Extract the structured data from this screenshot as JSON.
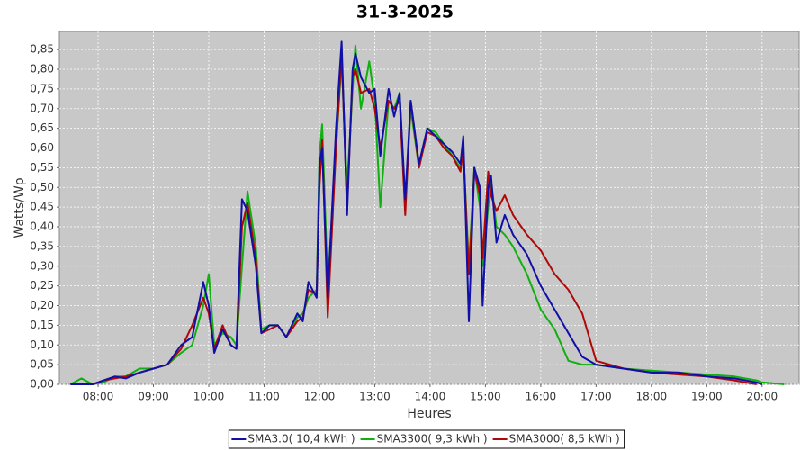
{
  "chart_data": {
    "type": "line",
    "title": "31-3-2025",
    "x_label": "Heures",
    "y_label": "Watts/Wp",
    "x": [
      7.5,
      7.7,
      7.9,
      8.1,
      8.3,
      8.5,
      8.75,
      9.0,
      9.25,
      9.5,
      9.7,
      9.9,
      10.0,
      10.1,
      10.25,
      10.4,
      10.5,
      10.6,
      10.7,
      10.85,
      10.95,
      11.1,
      11.25,
      11.4,
      11.6,
      11.7,
      11.8,
      11.95,
      12.0,
      12.05,
      12.15,
      12.3,
      12.4,
      12.5,
      12.6,
      12.65,
      12.75,
      12.9,
      13.0,
      13.1,
      13.25,
      13.35,
      13.45,
      13.55,
      13.65,
      13.8,
      13.95,
      14.1,
      14.25,
      14.4,
      14.55,
      14.6,
      14.7,
      14.8,
      14.9,
      14.95,
      15.05,
      15.1,
      15.2,
      15.35,
      15.5,
      15.75,
      16.0,
      16.25,
      16.5,
      16.75,
      17.0,
      17.5,
      18.0,
      18.5,
      19.0,
      19.5,
      19.9,
      20.0,
      20.4
    ],
    "series": [
      {
        "name": "SMA3.0( 10,4 kWh )",
        "color": "#1010a8",
        "values": [
          0,
          0,
          0,
          0.01,
          0.02,
          0.015,
          0.03,
          0.04,
          0.05,
          0.1,
          0.12,
          0.26,
          0.2,
          0.08,
          0.14,
          0.1,
          0.09,
          0.47,
          0.44,
          0.3,
          0.13,
          0.15,
          0.15,
          0.12,
          0.18,
          0.16,
          0.26,
          0.22,
          0.56,
          0.6,
          0.22,
          0.65,
          0.87,
          0.43,
          0.8,
          0.84,
          0.78,
          0.74,
          0.75,
          0.58,
          0.75,
          0.68,
          0.74,
          0.47,
          0.72,
          0.56,
          0.65,
          0.63,
          0.61,
          0.59,
          0.56,
          0.63,
          0.16,
          0.55,
          0.5,
          0.2,
          0.5,
          0.53,
          0.36,
          0.43,
          0.38,
          0.33,
          0.25,
          0.19,
          0.13,
          0.07,
          0.05,
          0.04,
          0.03,
          0.03,
          0.02,
          0.015,
          0.005,
          0,
          null
        ]
      },
      {
        "name": "SMA3300( 9,3 kWh )",
        "color": "#10b010",
        "values": [
          0,
          0.015,
          0,
          0.005,
          0.02,
          0.02,
          0.04,
          0.04,
          0.05,
          0.08,
          0.1,
          0.2,
          0.28,
          0.1,
          0.13,
          0.12,
          0.1,
          0.3,
          0.49,
          0.35,
          0.14,
          0.15,
          0.15,
          0.12,
          0.17,
          0.18,
          0.22,
          0.24,
          0.58,
          0.66,
          0.25,
          0.6,
          0.82,
          0.5,
          0.75,
          0.86,
          0.7,
          0.82,
          0.72,
          0.45,
          0.72,
          0.7,
          0.74,
          0.45,
          0.7,
          0.55,
          0.65,
          0.64,
          0.61,
          0.58,
          0.55,
          0.6,
          0.3,
          0.55,
          0.45,
          0.3,
          0.45,
          0.52,
          0.4,
          0.38,
          0.35,
          0.28,
          0.19,
          0.14,
          0.06,
          0.05,
          0.05,
          0.04,
          0.035,
          0.03,
          0.025,
          0.02,
          0.01,
          0.005,
          0
        ]
      },
      {
        "name": "SMA3000( 8,5 kWh )",
        "color": "#b00808",
        "values": [
          null,
          null,
          0,
          0.01,
          0.015,
          0.02,
          0.03,
          0.04,
          0.05,
          0.09,
          0.15,
          0.22,
          0.18,
          0.09,
          0.15,
          0.1,
          0.09,
          0.4,
          0.46,
          0.32,
          0.13,
          0.14,
          0.15,
          0.12,
          0.16,
          0.17,
          0.24,
          0.23,
          0.5,
          0.62,
          0.17,
          0.6,
          0.84,
          0.45,
          0.78,
          0.8,
          0.74,
          0.75,
          0.7,
          0.6,
          0.72,
          0.7,
          0.72,
          0.43,
          0.72,
          0.55,
          0.64,
          0.63,
          0.6,
          0.58,
          0.54,
          0.6,
          0.28,
          0.54,
          0.48,
          0.32,
          0.54,
          0.48,
          0.44,
          0.48,
          0.43,
          0.38,
          0.34,
          0.28,
          0.24,
          0.18,
          0.06,
          0.04,
          0.03,
          0.025,
          0.02,
          0.01,
          0,
          null,
          null
        ]
      }
    ],
    "draw_order": [
      1,
      2,
      0
    ],
    "xlim": [
      7.3,
      20.67
    ],
    "xticks": [
      {
        "value": 8,
        "label": "08:00"
      },
      {
        "value": 9,
        "label": "09:00"
      },
      {
        "value": 10,
        "label": "10:00"
      },
      {
        "value": 11,
        "label": "11:00"
      },
      {
        "value": 12,
        "label": "12:00"
      },
      {
        "value": 13,
        "label": "13:00"
      },
      {
        "value": 14,
        "label": "14:00"
      },
      {
        "value": 15,
        "label": "15:00"
      },
      {
        "value": 16,
        "label": "16:00"
      },
      {
        "value": 17,
        "label": "17:00"
      },
      {
        "value": 18,
        "label": "18:00"
      },
      {
        "value": 19,
        "label": "19:00"
      },
      {
        "value": 20,
        "label": "20:00"
      }
    ],
    "ylim": [
      0,
      0.896
    ],
    "yticks": [
      {
        "value": 0,
        "label": "0,00"
      },
      {
        "value": 0.05,
        "label": "0,05"
      },
      {
        "value": 0.1,
        "label": "0,10"
      },
      {
        "value": 0.15,
        "label": "0,15"
      },
      {
        "value": 0.2,
        "label": "0,20"
      },
      {
        "value": 0.25,
        "label": "0,25"
      },
      {
        "value": 0.3,
        "label": "0,30"
      },
      {
        "value": 0.35,
        "label": "0,35"
      },
      {
        "value": 0.4,
        "label": "0,40"
      },
      {
        "value": 0.45,
        "label": "0,45"
      },
      {
        "value": 0.5,
        "label": "0,50"
      },
      {
        "value": 0.55,
        "label": "0,55"
      },
      {
        "value": 0.6,
        "label": "0,60"
      },
      {
        "value": 0.65,
        "label": "0,65"
      },
      {
        "value": 0.7,
        "label": "0,70"
      },
      {
        "value": 0.75,
        "label": "0,75"
      },
      {
        "value": 0.8,
        "label": "0,80"
      },
      {
        "value": 0.85,
        "label": "0,85"
      }
    ],
    "grid": true,
    "background": "#c8c8c8",
    "legend": "bottom"
  }
}
